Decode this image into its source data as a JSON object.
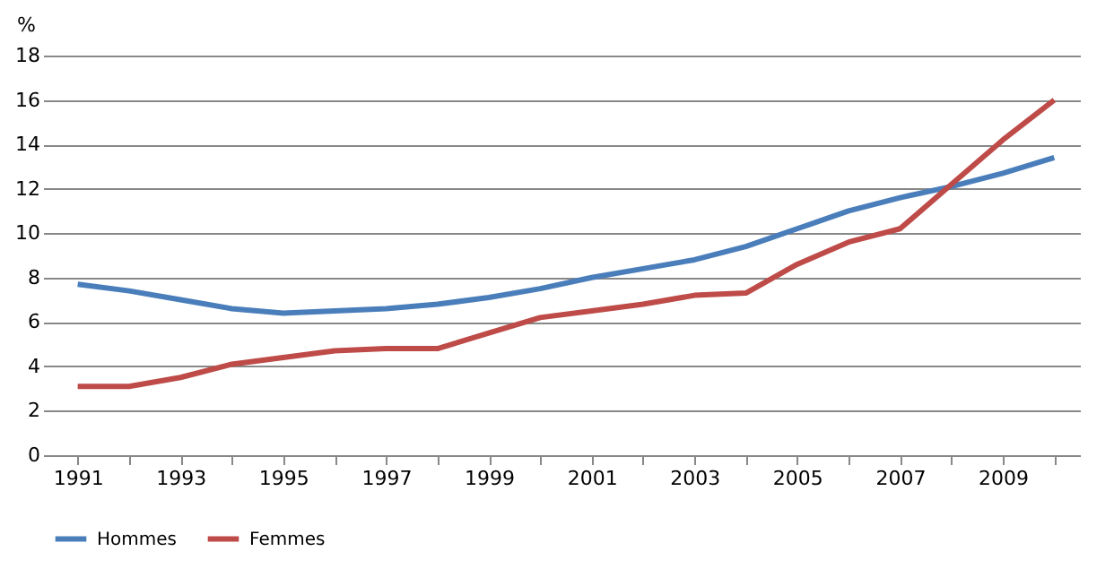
{
  "chart_data": {
    "type": "line",
    "ylabel": "%",
    "categories": [
      "1991",
      null,
      "1993",
      null,
      "1995",
      null,
      "1997",
      null,
      "1999",
      null,
      "2001",
      null,
      "2003",
      null,
      "2005",
      null,
      "2007",
      null,
      "2009",
      null
    ],
    "series": [
      {
        "name": "Hommes",
        "color": "#4a7ebb",
        "values": [
          7.7,
          7.4,
          7.0,
          6.6,
          6.4,
          6.5,
          6.6,
          6.8,
          7.1,
          7.5,
          8.0,
          8.4,
          8.8,
          9.4,
          10.2,
          11.0,
          11.6,
          12.1,
          12.7,
          13.4
        ]
      },
      {
        "name": "Femmes",
        "color": "#be4b48",
        "values": [
          3.1,
          3.1,
          3.5,
          4.1,
          4.4,
          4.7,
          4.8,
          4.8,
          5.5,
          6.2,
          6.5,
          6.8,
          7.2,
          7.3,
          8.6,
          9.6,
          10.2,
          12.2,
          14.2,
          16.0
        ]
      }
    ],
    "ylim": [
      0,
      18
    ],
    "yticks": [
      0,
      2,
      4,
      6,
      8,
      10,
      12,
      14,
      16,
      18
    ],
    "grid": "y",
    "legend": "bottom",
    "marker": "none",
    "line_style": "solid"
  }
}
